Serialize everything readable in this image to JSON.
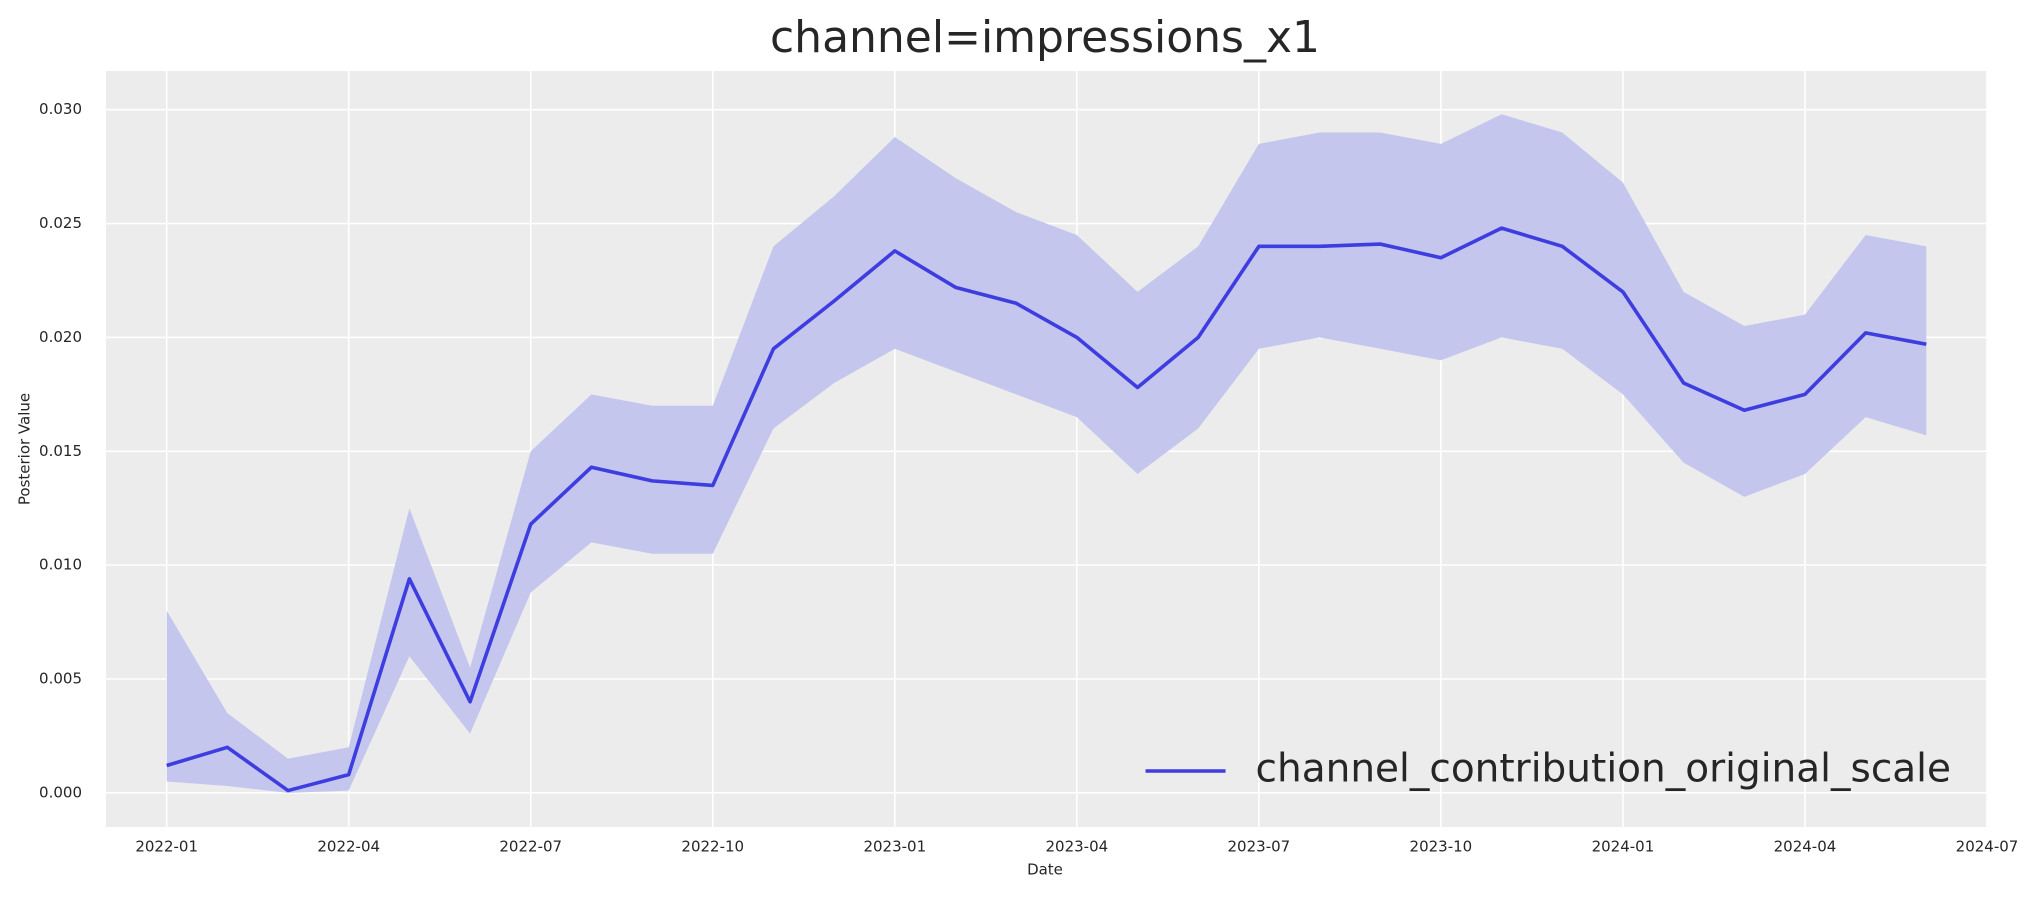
{
  "chart_data": {
    "type": "line",
    "title": "channel=impressions_x1",
    "xlabel": "Date",
    "ylabel": "Posterior Value",
    "x": [
      "2022-01",
      "2022-02",
      "2022-03",
      "2022-04",
      "2022-05",
      "2022-06",
      "2022-07",
      "2022-08",
      "2022-09",
      "2022-10",
      "2022-11",
      "2022-12",
      "2023-01",
      "2023-02",
      "2023-03",
      "2023-04",
      "2023-05",
      "2023-06",
      "2023-07",
      "2023-08",
      "2023-09",
      "2023-10",
      "2023-11",
      "2023-12",
      "2024-01",
      "2024-02",
      "2024-03",
      "2024-04",
      "2024-05",
      "2024-06"
    ],
    "series": [
      {
        "name": "channel_contribution_original_scale",
        "color": "#3d3de0",
        "values": [
          0.0012,
          0.002,
          0.0001,
          0.0008,
          0.0094,
          0.004,
          0.0118,
          0.0143,
          0.0137,
          0.0135,
          0.0195,
          0.0216,
          0.0238,
          0.0222,
          0.0215,
          0.02,
          0.0178,
          0.02,
          0.024,
          0.024,
          0.0241,
          0.0235,
          0.0248,
          0.024,
          0.022,
          0.018,
          0.0168,
          0.0175,
          0.0202,
          0.0197
        ]
      }
    ],
    "band": {
      "color": "#c5c6ee",
      "lower": [
        0.0005,
        0.0003,
        0.0,
        0.0001,
        0.006,
        0.0026,
        0.0088,
        0.011,
        0.0105,
        0.0105,
        0.016,
        0.018,
        0.0195,
        0.0185,
        0.0175,
        0.0165,
        0.014,
        0.016,
        0.0195,
        0.02,
        0.0195,
        0.019,
        0.02,
        0.0195,
        0.0175,
        0.0145,
        0.013,
        0.014,
        0.0165,
        0.0157
      ],
      "upper": [
        0.008,
        0.0035,
        0.0015,
        0.002,
        0.0125,
        0.0055,
        0.015,
        0.0175,
        0.017,
        0.017,
        0.024,
        0.0262,
        0.0288,
        0.027,
        0.0255,
        0.0245,
        0.022,
        0.024,
        0.0285,
        0.029,
        0.029,
        0.0285,
        0.0298,
        0.029,
        0.0268,
        0.022,
        0.0205,
        0.021,
        0.0245,
        0.024
      ]
    },
    "xlim": [
      "2021-12",
      "2024-07"
    ],
    "xticks": [
      "2022-01",
      "2022-04",
      "2022-07",
      "2022-10",
      "2023-01",
      "2023-04",
      "2023-07",
      "2023-10",
      "2024-01",
      "2024-04",
      "2024-07"
    ],
    "ylim": [
      -0.0015,
      0.0317
    ],
    "yticks": [
      {
        "value": 0,
        "label": "0.000"
      },
      0.005,
      {
        "value": 0.01,
        "label": "0.010"
      },
      0.015,
      {
        "value": 0.02,
        "label": "0.020"
      },
      0.025,
      {
        "value": 0.03,
        "label": "0.030"
      }
    ],
    "grid": true,
    "legend": "lower right"
  }
}
